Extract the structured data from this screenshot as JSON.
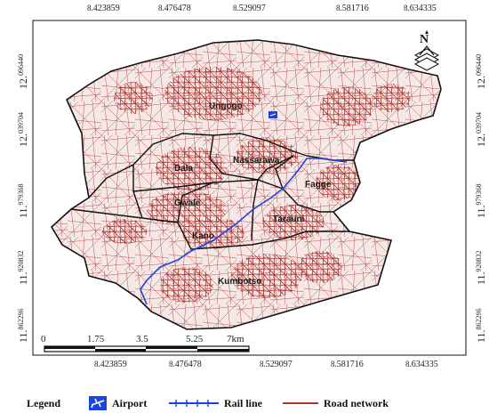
{
  "map": {
    "top_ticks": [
      {
        "sup": "8.",
        "val": "423859"
      },
      {
        "sup": "8.",
        "val": "476478"
      },
      {
        "sup": "8.",
        "val": "529097"
      },
      {
        "sup": "8.",
        "val": "581716"
      },
      {
        "sup": "8.",
        "val": "634335"
      }
    ],
    "bottom_ticks": [
      {
        "sup": "8.",
        "val": "423859"
      },
      {
        "sup": "8.",
        "val": "476478"
      },
      {
        "sup": "8.",
        "val": "529097"
      },
      {
        "sup": "8.",
        "val": "581716"
      },
      {
        "sup": "8.",
        "val": "634335"
      }
    ],
    "left_ticks": [
      {
        "sup": "12.",
        "val": "096440"
      },
      {
        "sup": "12.",
        "val": "039704"
      },
      {
        "sup": "11.",
        "val": "979368"
      },
      {
        "sup": "11.",
        "val": "920832"
      },
      {
        "sup": "11.",
        "val": "862296"
      }
    ],
    "right_ticks": [
      {
        "sup": "12.",
        "val": "096440"
      },
      {
        "sup": "12.",
        "val": "039704"
      },
      {
        "sup": "11.",
        "val": "979368"
      },
      {
        "sup": "11.",
        "val": "920832"
      },
      {
        "sup": "11.",
        "val": "862296"
      }
    ],
    "areas": {
      "ungogo": "Ungogo",
      "dala": "Dala",
      "nassarawa": "Nassarawa",
      "fagge": "Fagge",
      "gwale": "Gwale",
      "tarauni": "Tarauni",
      "kano": "Kano",
      "kumbotso": "Kumbotso"
    },
    "north_arrow": "N",
    "scale_bar": {
      "labels": [
        "0",
        "1.75",
        "3.5",
        "5.25",
        "7km"
      ]
    },
    "colors": {
      "road": "#a83a34",
      "boundary": "#111111",
      "rail": "#1a44e0",
      "airport": "#1a44e0"
    }
  },
  "legend": {
    "title": "Legend",
    "airport": "Airport",
    "rail": "Rail line",
    "road": "Road network"
  }
}
